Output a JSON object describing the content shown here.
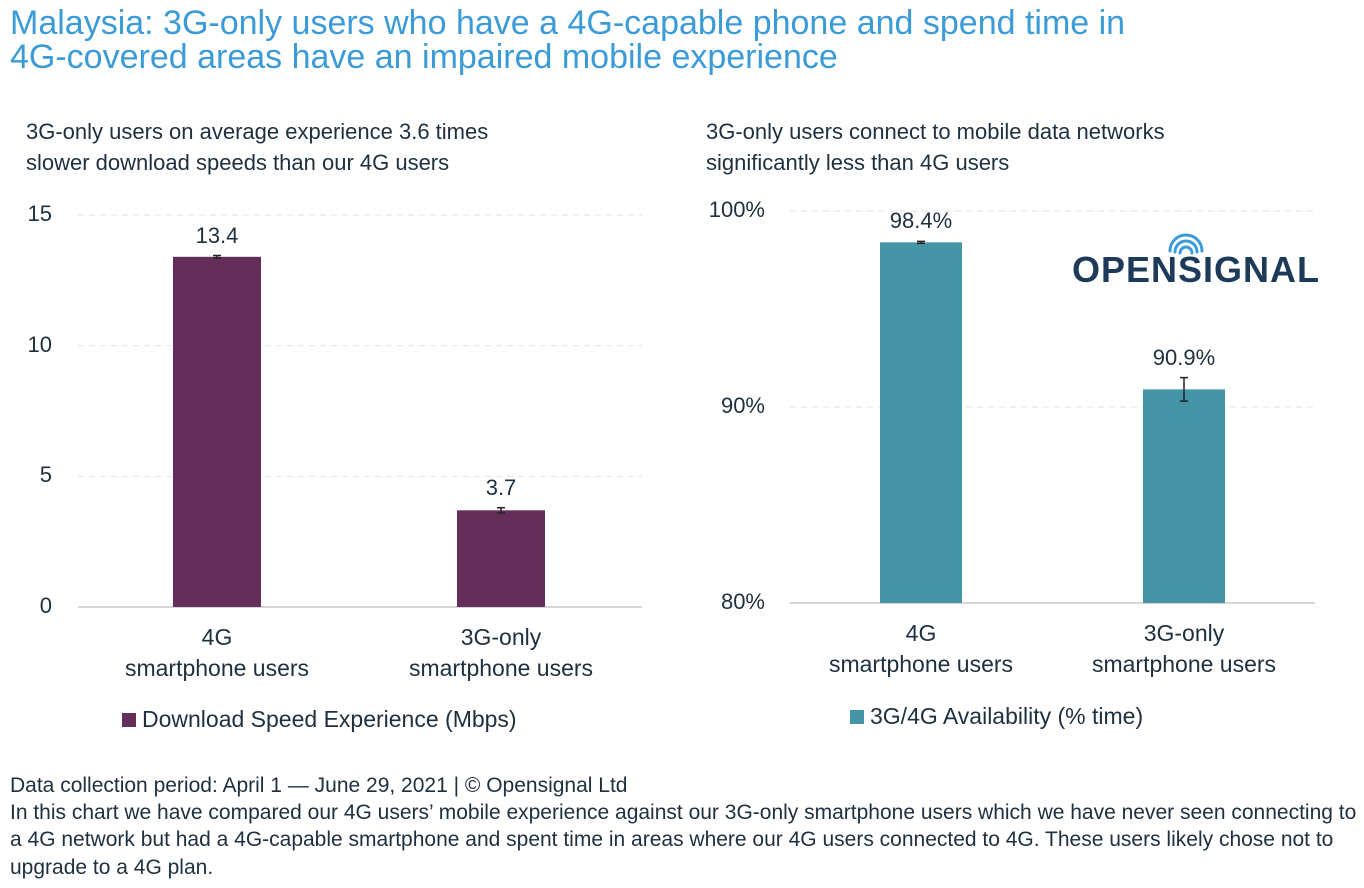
{
  "title": "Malaysia: 3G-only users who have a 4G-capable phone and spend time in\n4G-covered areas have an impaired mobile experience",
  "logo": "OPENSIGNAL",
  "chart_data": [
    {
      "type": "bar",
      "title": "3G-only users on average experience 3.6 times\nslower download speeds than our 4G users",
      "categories": [
        "4G\nsmartphone users",
        "3G-only\nsmartphone users"
      ],
      "series": [
        {
          "name": "Download Speed Experience (Mbps)",
          "color": "#652d5a",
          "values": [
            13.4,
            3.7
          ],
          "errors": [
            0.05,
            0.1
          ]
        }
      ],
      "ylim": [
        0,
        15
      ],
      "yticks": [
        0,
        5,
        10,
        15
      ],
      "grid": true
    },
    {
      "type": "bar",
      "title": "3G-only users connect to mobile data networks\nsignificantly less than 4G users",
      "categories": [
        "4G\nsmartphone users",
        "3G-only\nsmartphone users"
      ],
      "series": [
        {
          "name": "3G/4G Availability (% time)",
          "color": "#4495a6",
          "values": [
            98.4,
            90.9
          ],
          "value_labels": [
            "98.4%",
            "90.9%"
          ],
          "errors": [
            0.05,
            0.6
          ]
        }
      ],
      "ylim": [
        80,
        100
      ],
      "yticks": [
        {
          "value": 80,
          "label": "80%"
        },
        {
          "value": 90,
          "label": "90%"
        },
        {
          "value": 100,
          "label": "100%"
        }
      ],
      "grid": true
    }
  ],
  "footer": {
    "period": "Data collection period: April 1 — June 29, 2021 | © Opensignal Ltd",
    "note": "In this chart we have compared our 4G users’ mobile experience against our 3G-only smartphone users which we have never seen connecting to a 4G network but had a 4G-capable smartphone and spent time in areas where our 4G users connected to 4G. These users likely chose not to upgrade to a 4G plan."
  }
}
